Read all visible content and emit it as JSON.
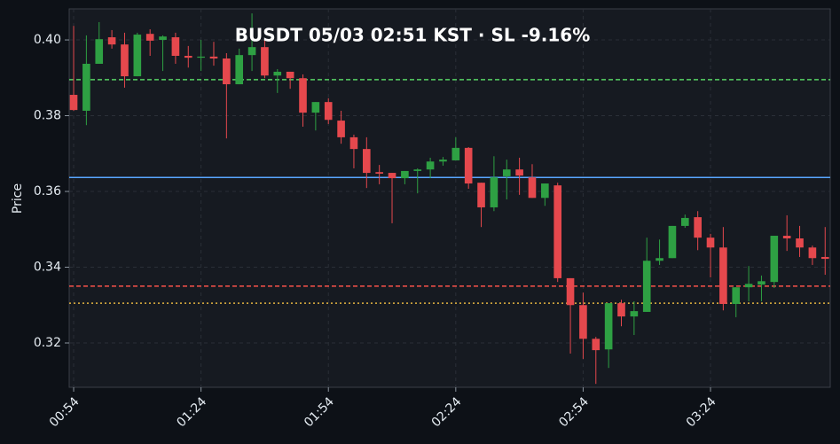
{
  "chart_data": {
    "type": "candlestick",
    "title": "BUSDT  05/03 02:51 KST  ·  SL -9.16%",
    "y_label": "Price",
    "categories": [
      "00:54",
      "00:57",
      "01:00",
      "01:03",
      "01:06",
      "01:09",
      "01:12",
      "01:15",
      "01:18",
      "01:21",
      "01:24",
      "01:27",
      "01:30",
      "01:33",
      "01:36",
      "01:39",
      "01:42",
      "01:45",
      "01:48",
      "01:51",
      "01:54",
      "01:57",
      "02:00",
      "02:03",
      "02:06",
      "02:09",
      "02:12",
      "02:15",
      "02:18",
      "02:21",
      "02:24",
      "02:27",
      "02:30",
      "02:33",
      "02:36",
      "02:39",
      "02:42",
      "02:45",
      "02:48",
      "02:51",
      "02:54",
      "02:57",
      "03:00",
      "03:03",
      "03:06",
      "03:09",
      "03:12",
      "03:15",
      "03:18",
      "03:21",
      "03:24",
      "03:27",
      "03:30",
      "03:33",
      "03:36",
      "03:39",
      "03:42",
      "03:45",
      "03:48",
      "03:51"
    ],
    "open": [
      0.3855,
      0.3813,
      0.3937,
      0.4007,
      0.3988,
      0.3904,
      0.4016,
      0.4,
      0.4007,
      0.3958,
      0.3953,
      0.3956,
      0.3951,
      0.3883,
      0.396,
      0.3981,
      0.3906,
      0.3916,
      0.3899,
      0.3808,
      0.3836,
      0.3787,
      0.3743,
      0.3712,
      0.3651,
      0.3649,
      0.3635,
      0.3654,
      0.3658,
      0.3679,
      0.3682,
      0.3715,
      0.3623,
      0.3558,
      0.364,
      0.3658,
      0.3637,
      0.3583,
      0.3616,
      0.3371,
      0.33,
      0.3211,
      0.3183,
      0.3305,
      0.327,
      0.3282,
      0.3417,
      0.3424,
      0.3509,
      0.3532,
      0.3478,
      0.3452,
      0.3303,
      0.3347,
      0.3354,
      0.3361,
      0.3483,
      0.3476,
      0.3452,
      0.3427
    ],
    "high": [
      0.4037,
      0.4012,
      0.4047,
      0.4026,
      0.4019,
      0.4019,
      0.4028,
      0.4012,
      0.4019,
      0.3984,
      0.4,
      0.3995,
      0.3965,
      0.3977,
      0.407,
      0.4,
      0.3923,
      0.3916,
      0.3909,
      0.3836,
      0.3846,
      0.3813,
      0.375,
      0.3743,
      0.367,
      0.3649,
      0.3654,
      0.3661,
      0.3689,
      0.3691,
      0.3743,
      0.3717,
      0.3623,
      0.3693,
      0.3684,
      0.3689,
      0.3672,
      0.3621,
      0.3623,
      0.3371,
      0.3333,
      0.3216,
      0.3305,
      0.3314,
      0.331,
      0.3478,
      0.3473,
      0.3509,
      0.3539,
      0.3548,
      0.3488,
      0.3506,
      0.3347,
      0.3403,
      0.3378,
      0.3483,
      0.3537,
      0.3509,
      0.3457,
      0.3506
    ],
    "low": [
      0.3813,
      0.3775,
      0.3937,
      0.3977,
      0.3874,
      0.3904,
      0.3958,
      0.3918,
      0.3937,
      0.3927,
      0.3918,
      0.3932,
      0.374,
      0.3883,
      0.3918,
      0.3899,
      0.386,
      0.3871,
      0.3771,
      0.3761,
      0.3778,
      0.3726,
      0.3661,
      0.3609,
      0.3619,
      0.3516,
      0.3619,
      0.3595,
      0.3635,
      0.3668,
      0.3682,
      0.3607,
      0.3506,
      0.3548,
      0.3579,
      0.3591,
      0.3583,
      0.3562,
      0.3361,
      0.3172,
      0.3158,
      0.3092,
      0.3134,
      0.3244,
      0.3221,
      0.3282,
      0.3406,
      0.3424,
      0.3504,
      0.3445,
      0.3373,
      0.3286,
      0.3268,
      0.331,
      0.331,
      0.3345,
      0.3443,
      0.3427,
      0.3406,
      0.338
    ],
    "close": [
      0.3815,
      0.3937,
      0.4002,
      0.3988,
      0.3904,
      0.4014,
      0.3998,
      0.4009,
      0.3958,
      0.3953,
      0.3956,
      0.3951,
      0.3883,
      0.396,
      0.3981,
      0.3906,
      0.3916,
      0.3899,
      0.3808,
      0.3836,
      0.3789,
      0.3743,
      0.3712,
      0.3649,
      0.3647,
      0.3635,
      0.3654,
      0.3658,
      0.3679,
      0.3684,
      0.3715,
      0.3621,
      0.3558,
      0.3637,
      0.3658,
      0.3642,
      0.3583,
      0.3621,
      0.3371,
      0.33,
      0.3211,
      0.3181,
      0.3305,
      0.327,
      0.3284,
      0.3417,
      0.3424,
      0.3509,
      0.353,
      0.3478,
      0.3452,
      0.3303,
      0.3347,
      0.3356,
      0.3363,
      0.3483,
      0.3476,
      0.3452,
      0.3424,
      0.3422
    ],
    "up_color": "#2ea043",
    "down_color": "#e5484d",
    "levels": [
      {
        "value": 0.3895,
        "color": "#56d364",
        "style": "dashed"
      },
      {
        "value": 0.3637,
        "color": "#58a6ff",
        "style": "solid"
      },
      {
        "value": 0.335,
        "color": "#f85149",
        "style": "dashed"
      },
      {
        "value": 0.3305,
        "color": "#e3b341",
        "style": "dotted"
      }
    ],
    "xticks": [
      "00:54",
      "01:24",
      "01:54",
      "02:24",
      "02:54",
      "03:24"
    ],
    "ylim": [
      0.3083,
      0.4082
    ],
    "yticks": [
      0.32,
      0.34,
      0.36,
      0.38,
      {
        "value": 0.4,
        "label": "0.40"
      }
    ],
    "grid": true
  }
}
